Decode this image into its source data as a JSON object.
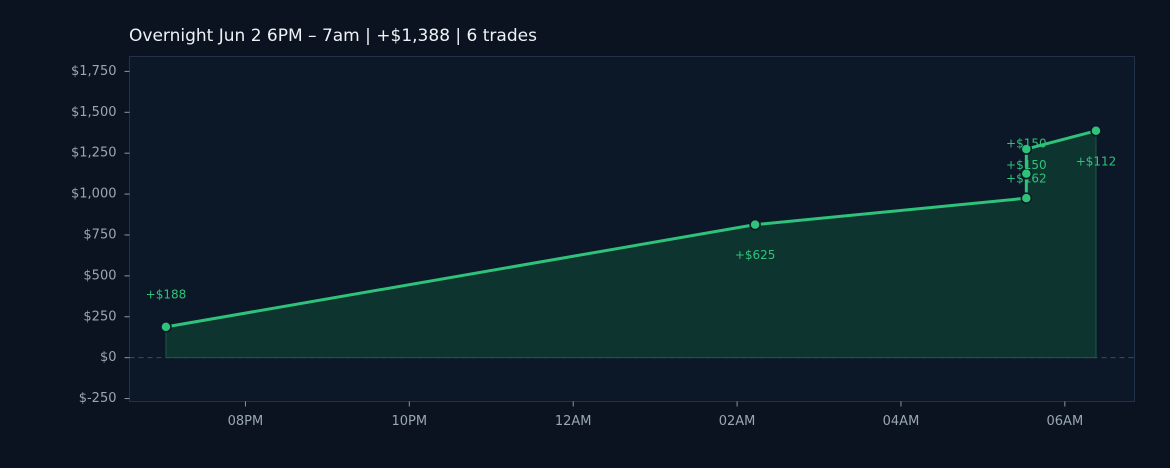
{
  "chart_data": {
    "type": "cumulative-line",
    "title": "Overnight  Jun 2 6PM – 7am  |  +$1,388  |  6 trades",
    "x": [
      19.03,
      26.22,
      29.53,
      29.53,
      29.53,
      30.38
    ],
    "values": [
      188,
      625,
      162,
      150,
      150,
      112
    ],
    "value_labels": [
      "+$188",
      "+$625",
      "+$162",
      "+$150",
      "+$150",
      "+$112"
    ],
    "color": "#2ec27a",
    "xlim": [
      18.585,
      30.85
    ],
    "xticks": [
      {
        "value": 20,
        "label": "08PM"
      },
      {
        "value": 22,
        "label": "10PM"
      },
      {
        "value": 24,
        "label": "12AM"
      },
      {
        "value": 26,
        "label": "02AM"
      },
      {
        "value": 28,
        "label": "04AM"
      },
      {
        "value": 30,
        "label": "06AM"
      }
    ],
    "ylim": [
      -268,
      1841
    ],
    "yticks": [
      {
        "value": -250,
        "label": "$-250"
      },
      {
        "value": 0,
        "label": "$0"
      },
      {
        "value": 250,
        "label": "$250"
      },
      {
        "value": 500,
        "label": "$500"
      },
      {
        "value": 750,
        "label": "$750"
      },
      {
        "value": 1000,
        "label": "$1,000"
      },
      {
        "value": 1250,
        "label": "$1,250"
      },
      {
        "value": 1500,
        "label": "$1,500"
      },
      {
        "value": 1750,
        "label": "$1,750"
      }
    ]
  }
}
